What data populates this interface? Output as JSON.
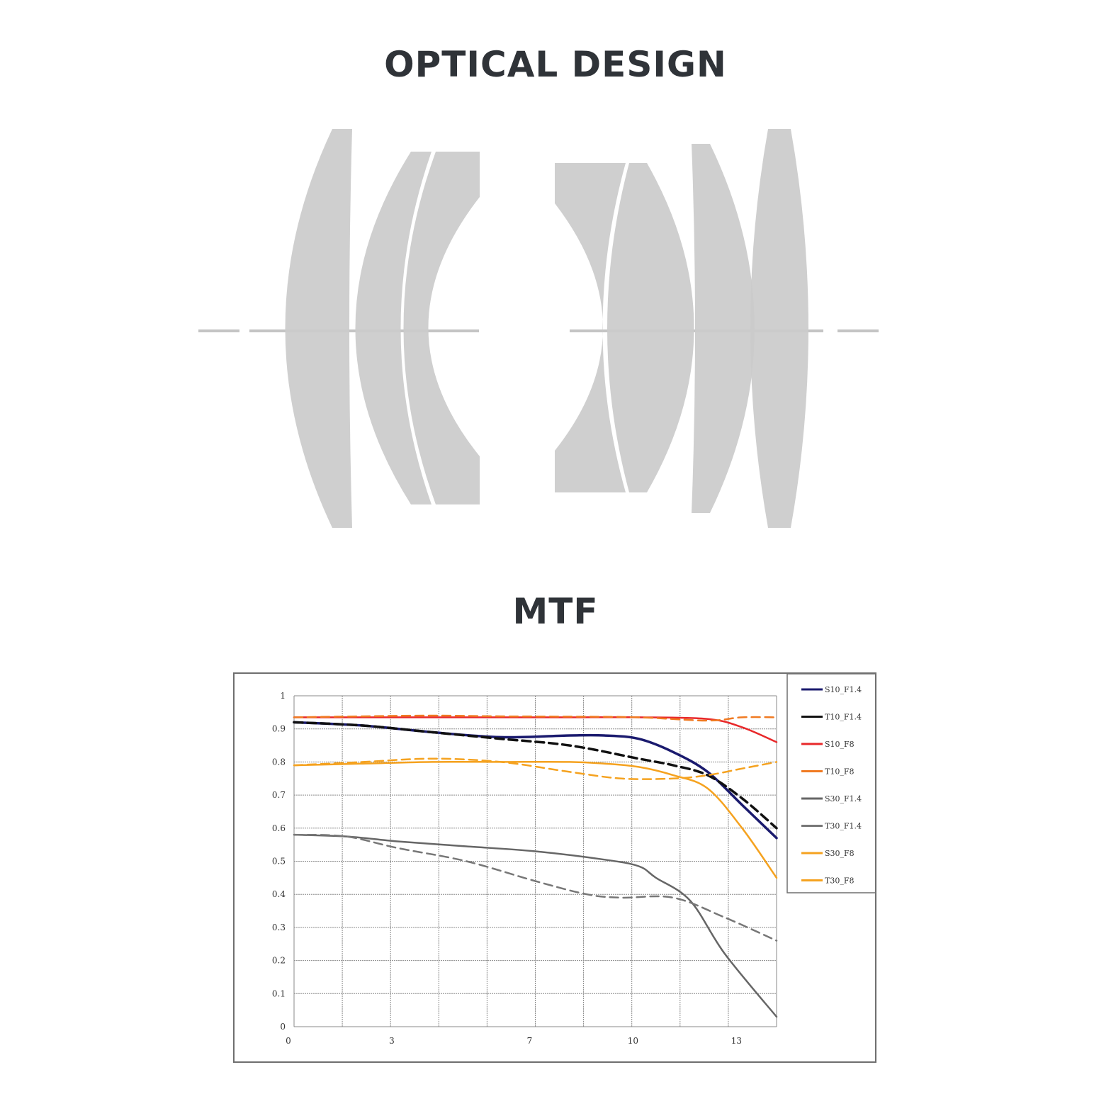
{
  "titles": {
    "optical_design": "OPTICAL DESIGN",
    "mtf": "MTF"
  },
  "colors": {
    "lens_fill": "#cbcbcb",
    "axis_line": "#c4c4c4",
    "grid": "#8a8a8a"
  },
  "chart_data": {
    "type": "line",
    "title": "",
    "xlabel": "",
    "ylabel": "",
    "xlim": [
      0,
      14
    ],
    "ylim": [
      0,
      1
    ],
    "x_ticks": [
      "0",
      "3",
      "7",
      "10",
      "13"
    ],
    "y_ticks": [
      "0",
      "0.1",
      "0.2",
      "0.3",
      "0.4",
      "0.5",
      "0.6",
      "0.7",
      "0.8",
      "0.9",
      "1"
    ],
    "grid": true,
    "legend_position": "right",
    "series": [
      {
        "name": "S10_F1.4",
        "color": "#1a1a6e",
        "dash": false,
        "x": [
          0,
          2,
          4,
          6,
          8,
          9,
          10,
          11,
          12,
          13,
          14
        ],
        "y": [
          0.92,
          0.91,
          0.89,
          0.875,
          0.88,
          0.88,
          0.87,
          0.83,
          0.77,
          0.67,
          0.57
        ]
      },
      {
        "name": "T10_F1.4",
        "color": "#111111",
        "dash": true,
        "x": [
          0,
          2,
          4,
          6,
          8,
          10,
          11,
          12,
          13,
          14
        ],
        "y": [
          0.92,
          0.91,
          0.89,
          0.87,
          0.85,
          0.81,
          0.79,
          0.76,
          0.69,
          0.6
        ]
      },
      {
        "name": "S10_F8",
        "color": "#e8282a",
        "dash": false,
        "x": [
          0,
          2,
          4,
          6,
          8,
          10,
          12,
          13,
          14
        ],
        "y": [
          0.935,
          0.935,
          0.935,
          0.935,
          0.935,
          0.935,
          0.93,
          0.905,
          0.86
        ]
      },
      {
        "name": "T10_F8",
        "color": "#f07a22",
        "dash": true,
        "x": [
          0,
          2,
          4,
          6,
          8,
          10,
          12,
          13,
          14
        ],
        "y": [
          0.935,
          0.938,
          0.94,
          0.938,
          0.937,
          0.935,
          0.925,
          0.935,
          0.935
        ]
      },
      {
        "name": "S30_F1.4",
        "color": "#666666",
        "dash": false,
        "x": [
          0,
          1.5,
          3,
          5,
          7,
          9,
          10,
          10.5,
          11.5,
          12.5,
          14
        ],
        "y": [
          0.58,
          0.575,
          0.56,
          0.545,
          0.53,
          0.505,
          0.485,
          0.45,
          0.38,
          0.22,
          0.03
        ]
      },
      {
        "name": "T30_F1.4",
        "color": "#777777",
        "dash": true,
        "x": [
          0,
          1.5,
          3,
          5,
          7,
          8.5,
          9.5,
          11,
          12.5,
          14
        ],
        "y": [
          0.58,
          0.575,
          0.54,
          0.5,
          0.44,
          0.4,
          0.39,
          0.39,
          0.33,
          0.26
        ]
      },
      {
        "name": "S30_F8",
        "color": "#f5a21f",
        "dash": false,
        "x": [
          0,
          2,
          4,
          6,
          8,
          9,
          10,
          11,
          12,
          13,
          14
        ],
        "y": [
          0.79,
          0.795,
          0.8,
          0.8,
          0.8,
          0.795,
          0.785,
          0.76,
          0.72,
          0.6,
          0.45
        ]
      },
      {
        "name": "T30_F8",
        "color": "#f5a21f",
        "dash": true,
        "x": [
          0,
          2,
          4,
          6,
          8,
          9.5,
          11,
          12,
          13,
          14
        ],
        "y": [
          0.79,
          0.8,
          0.81,
          0.8,
          0.77,
          0.75,
          0.75,
          0.76,
          0.78,
          0.8
        ]
      }
    ]
  }
}
